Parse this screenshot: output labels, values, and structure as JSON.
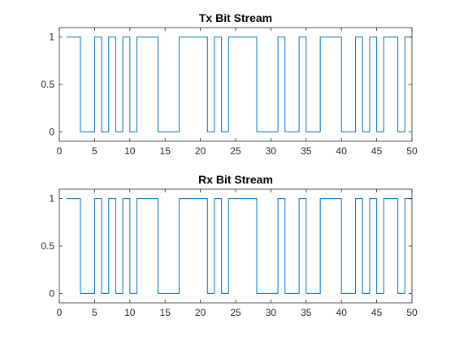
{
  "chart_data": [
    {
      "type": "line",
      "step": "post",
      "title": "Tx Bit Stream",
      "xlabel": "",
      "ylabel": "",
      "xlim": [
        0,
        50
      ],
      "ylim": [
        -0.1,
        1.1
      ],
      "xticks": [
        0,
        5,
        10,
        15,
        20,
        25,
        30,
        35,
        40,
        45,
        50
      ],
      "xtick_labels": [
        "0",
        "5",
        "10",
        "15",
        "20",
        "25",
        "30",
        "35",
        "40",
        "45",
        "50"
      ],
      "yticks": [
        0,
        0.5,
        1
      ],
      "ytick_labels": [
        "0",
        "0.5",
        "1"
      ],
      "grid": false,
      "legend": "none",
      "color": "#0072BD",
      "series": [
        {
          "x": [
            1,
            2,
            3,
            4,
            5,
            6,
            7,
            8,
            9,
            10,
            11,
            12,
            13,
            14,
            15,
            16,
            17,
            18,
            19,
            20,
            21,
            22,
            23,
            24,
            25,
            26,
            27,
            28,
            29,
            30,
            31,
            32,
            33,
            34,
            35,
            36,
            37,
            38,
            39,
            40,
            41,
            42,
            43,
            44,
            45,
            46,
            47,
            48,
            49,
            50
          ],
          "values": [
            1,
            1,
            0,
            0,
            1,
            0,
            1,
            0,
            1,
            0,
            1,
            1,
            1,
            0,
            0,
            0,
            1,
            1,
            1,
            1,
            0,
            1,
            0,
            1,
            1,
            1,
            1,
            0,
            0,
            0,
            1,
            0,
            0,
            1,
            0,
            0,
            1,
            1,
            1,
            0,
            0,
            1,
            0,
            1,
            0,
            1,
            1,
            0,
            1,
            1
          ]
        }
      ]
    },
    {
      "type": "line",
      "step": "post",
      "title": "Rx Bit Stream",
      "xlabel": "",
      "ylabel": "",
      "xlim": [
        0,
        50
      ],
      "ylim": [
        -0.1,
        1.1
      ],
      "xticks": [
        0,
        5,
        10,
        15,
        20,
        25,
        30,
        35,
        40,
        45,
        50
      ],
      "xtick_labels": [
        "0",
        "5",
        "10",
        "15",
        "20",
        "25",
        "30",
        "35",
        "40",
        "45",
        "50"
      ],
      "yticks": [
        0,
        0.5,
        1
      ],
      "ytick_labels": [
        "0",
        "0.5",
        "1"
      ],
      "grid": false,
      "legend": "none",
      "color": "#0072BD",
      "series": [
        {
          "x": [
            1,
            2,
            3,
            4,
            5,
            6,
            7,
            8,
            9,
            10,
            11,
            12,
            13,
            14,
            15,
            16,
            17,
            18,
            19,
            20,
            21,
            22,
            23,
            24,
            25,
            26,
            27,
            28,
            29,
            30,
            31,
            32,
            33,
            34,
            35,
            36,
            37,
            38,
            39,
            40,
            41,
            42,
            43,
            44,
            45,
            46,
            47,
            48,
            49,
            50
          ],
          "values": [
            1,
            1,
            0,
            0,
            1,
            0,
            1,
            0,
            1,
            0,
            1,
            1,
            1,
            0,
            0,
            0,
            1,
            1,
            1,
            1,
            0,
            1,
            0,
            1,
            1,
            1,
            1,
            0,
            0,
            0,
            1,
            0,
            0,
            1,
            0,
            0,
            1,
            1,
            1,
            0,
            0,
            1,
            0,
            1,
            0,
            1,
            1,
            0,
            1,
            1
          ]
        }
      ]
    }
  ]
}
